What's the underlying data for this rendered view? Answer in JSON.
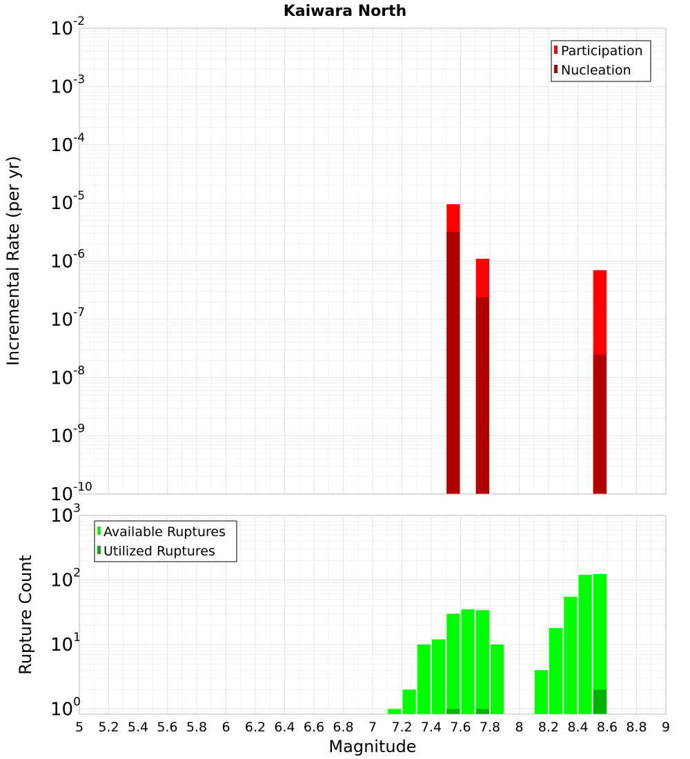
{
  "chart_data": [
    {
      "type": "bar",
      "panel": "top",
      "title": "Kaiwara North",
      "ylabel": "Incremental Rate (per yr)",
      "xlabel": "",
      "xlim": [
        5,
        9
      ],
      "ylim_exp": [
        -10,
        -2
      ],
      "yscale": "log",
      "bin_width": 0.1,
      "ytick_exponents": [
        "-10",
        "-9",
        "-8",
        "-7",
        "-6",
        "-5",
        "-4",
        "-3",
        "-2"
      ],
      "ytick_base": "10",
      "legend": [
        {
          "label": "Participation",
          "color": "#ff0000"
        },
        {
          "label": "Nucleation",
          "color": "#b20000"
        }
      ],
      "series": [
        {
          "name": "Participation",
          "color": "#ff0000",
          "x": [
            7.55,
            7.75,
            8.55
          ],
          "values": [
            9.5e-06,
            1.1e-06,
            7e-07
          ]
        },
        {
          "name": "Nucleation",
          "color": "#b20000",
          "x": [
            7.55,
            7.75,
            8.55
          ],
          "values": [
            3.2e-06,
            2.4e-07,
            2.5e-08
          ]
        }
      ]
    },
    {
      "type": "bar",
      "panel": "bottom",
      "title": "",
      "ylabel": "Rupture Count",
      "xlabel": "Magnitude",
      "xlim": [
        5,
        9
      ],
      "ylim_exp": [
        -0.08,
        3
      ],
      "yscale": "log",
      "bin_width": 0.1,
      "ytick_exponents": [
        "0",
        "1",
        "2",
        "3"
      ],
      "ytick_base": "10",
      "xticks": [
        "5",
        "5.2",
        "5.4",
        "5.6",
        "5.8",
        "6",
        "6.2",
        "6.4",
        "6.6",
        "6.8",
        "7",
        "7.2",
        "7.4",
        "7.6",
        "7.8",
        "8",
        "8.2",
        "8.4",
        "8.6",
        "8.8",
        "9"
      ],
      "legend": [
        {
          "label": "Available Ruptures",
          "color": "#00ff00"
        },
        {
          "label": "Utilized Ruptures",
          "color": "#00b200"
        }
      ],
      "series": [
        {
          "name": "Available Ruptures",
          "color": "#00ff00",
          "x": [
            7.15,
            7.25,
            7.35,
            7.45,
            7.55,
            7.65,
            7.75,
            7.85,
            8.15,
            8.25,
            8.35,
            8.45,
            8.55
          ],
          "values": [
            1,
            2,
            10,
            12,
            30,
            35,
            34,
            10,
            4,
            18,
            55,
            120,
            124
          ]
        },
        {
          "name": "Utilized Ruptures",
          "color": "#00b200",
          "x": [
            7.55,
            7.75,
            8.55
          ],
          "values": [
            1,
            1,
            2
          ]
        }
      ]
    }
  ]
}
